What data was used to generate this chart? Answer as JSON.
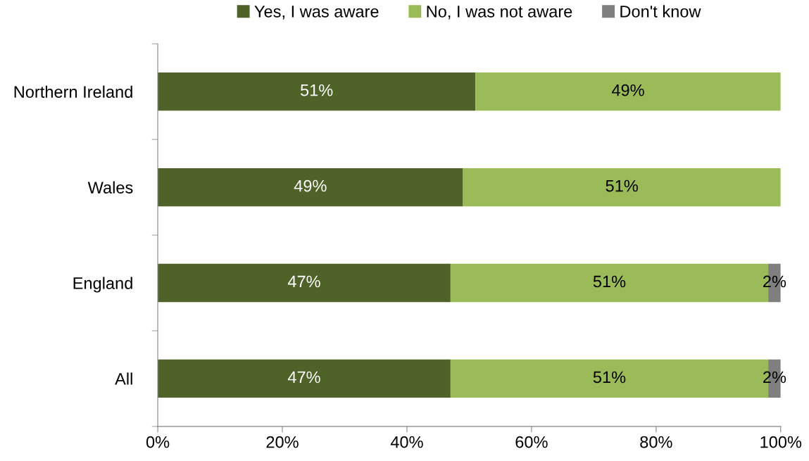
{
  "chart_data": {
    "type": "bar",
    "orientation": "horizontal",
    "stacked": true,
    "categories": [
      "Northern Ireland",
      "Wales",
      "England",
      "All"
    ],
    "series": [
      {
        "name": "Yes, I was aware",
        "color": "#4f6228",
        "values": [
          51,
          49,
          47,
          47
        ],
        "value_labels": [
          "51%",
          "49%",
          "47%",
          "47%"
        ]
      },
      {
        "name": "No, I was not aware",
        "color": "#9bbb59",
        "values": [
          49,
          51,
          51,
          51
        ],
        "value_labels": [
          "49%",
          "51%",
          "51%",
          "51%"
        ]
      },
      {
        "name": "Don't know",
        "color": "#7f7f7f",
        "values": [
          null,
          null,
          2,
          2
        ],
        "value_labels": [
          null,
          null,
          "2%",
          "2%"
        ]
      }
    ],
    "xlim": [
      0,
      100
    ],
    "xticks": [
      {
        "value": 0,
        "label": "0%"
      },
      {
        "value": 20,
        "label": "20%"
      },
      {
        "value": 40,
        "label": "40%"
      },
      {
        "value": 60,
        "label": "60%"
      },
      {
        "value": 80,
        "label": "80%"
      },
      {
        "value": 100,
        "label": "100%"
      }
    ],
    "grid": false,
    "legend": "top"
  }
}
